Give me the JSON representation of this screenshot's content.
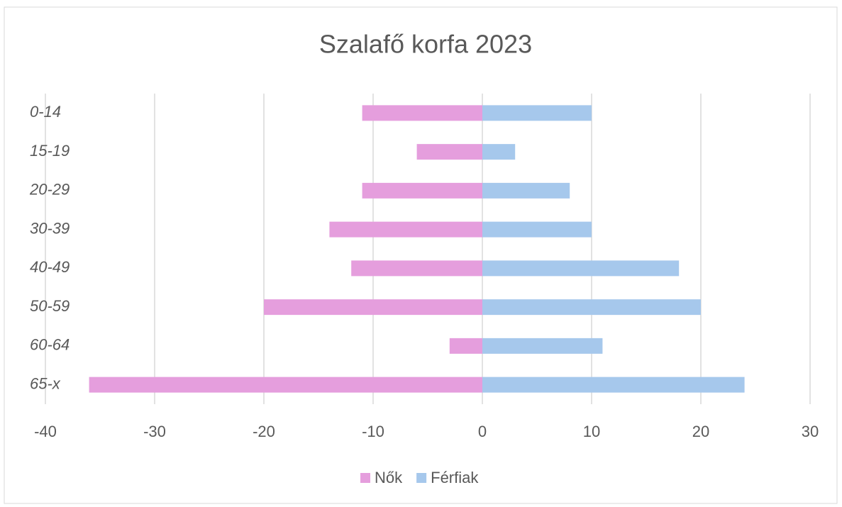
{
  "chart_data": {
    "type": "bar",
    "orientation": "horizontal",
    "title": "Szalafő korfa 2023",
    "categories": [
      "0-14",
      "15-19",
      "20-29",
      "30-39",
      "40-49",
      "50-59",
      "60-64",
      "65-x"
    ],
    "series": [
      {
        "name": "Nők",
        "color": "#e59edd",
        "values": [
          -11,
          -6,
          -11,
          -14,
          -12,
          -20,
          -3,
          -36
        ]
      },
      {
        "name": "Férfiak",
        "color": "#a6c8ec",
        "values": [
          10,
          3,
          8,
          10,
          18,
          20,
          11,
          24
        ]
      }
    ],
    "xlim": [
      -40,
      30
    ],
    "xticks": [
      -40,
      -30,
      -20,
      -10,
      0,
      10,
      20,
      30
    ],
    "grid": true,
    "legend": "bottom"
  }
}
